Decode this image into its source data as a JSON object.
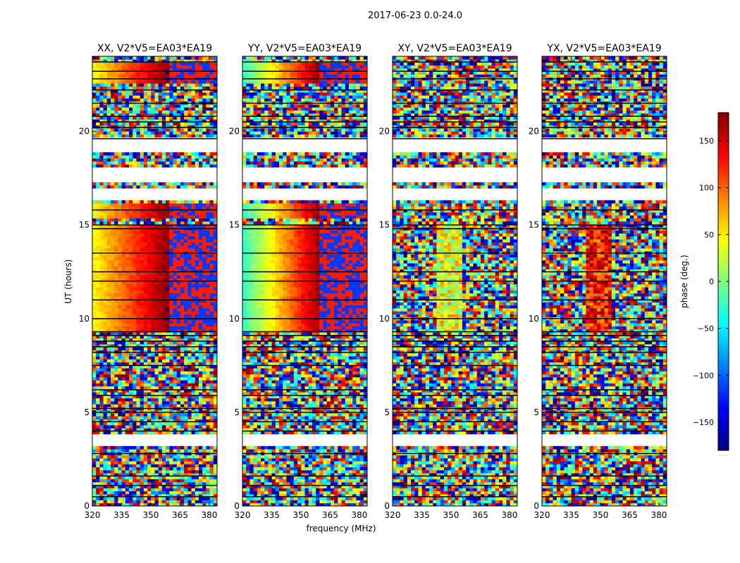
{
  "figure": {
    "suptitle": "2017-06-23 0.0-24.0",
    "ylabel": "UT (hours)",
    "xlabel": "frequency (MHz)",
    "colorbar_label": "phase (deg.)",
    "colorbar_offset_text": "......"
  },
  "chart_data": {
    "type": "heatmap",
    "title": "2017-06-23 0.0-24.0",
    "xlabel": "frequency (MHz)",
    "ylabel": "UT (hours)",
    "xlim": [
      320,
      384
    ],
    "ylim": [
      0,
      24
    ],
    "x_ticks": [
      320,
      335,
      350,
      365,
      380
    ],
    "y_ticks": [
      0,
      5,
      10,
      15,
      20
    ],
    "colormap": "jet",
    "colorbar": {
      "label": "phase (deg.)",
      "range": [
        -180,
        180
      ],
      "ticks": [
        -150,
        -100,
        -50,
        0,
        50,
        100,
        150
      ]
    },
    "panels": [
      {
        "title": "XX, V2*V5=EA03*EA19",
        "pattern": "xx"
      },
      {
        "title": "YY, V2*V5=EA03*EA19",
        "pattern": "yy"
      },
      {
        "title": "XY, V2*V5=EA03*EA19",
        "pattern": "xy"
      },
      {
        "title": "YX, V2*V5=EA03*EA19",
        "pattern": "yx"
      }
    ],
    "blank_ut_ranges": [
      [
        3.2,
        3.9
      ],
      [
        17.3,
        18.1
      ],
      [
        16.3,
        17.0
      ],
      [
        18.9,
        19.6
      ]
    ],
    "black_line_ut": [
      0.5,
      1.1,
      1.6,
      2.8,
      4.0,
      4.5,
      5.0,
      5.2,
      5.9,
      6.2,
      7.5,
      8.2,
      8.5,
      8.8,
      9.1,
      9.3,
      10.0,
      11.0,
      12.0,
      12.5,
      13.5,
      14.8,
      15.0,
      15.8,
      19.6,
      20.2,
      20.5,
      20.8,
      21.5,
      22.2,
      22.8,
      23.2,
      23.7
    ]
  }
}
